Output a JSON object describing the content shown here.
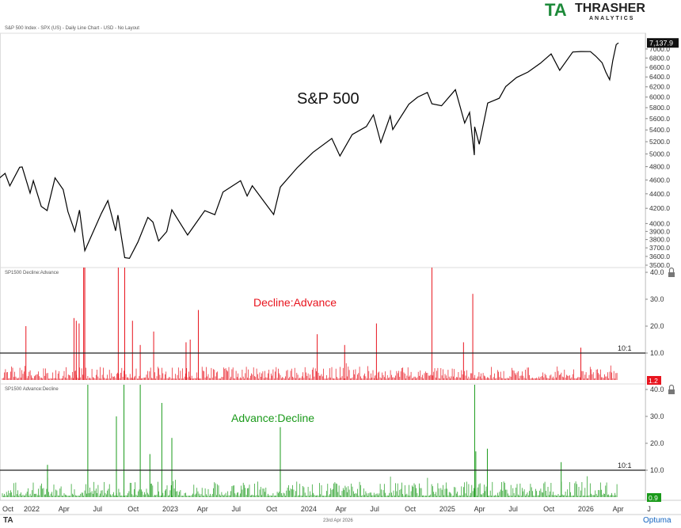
{
  "header": {
    "subtitle": "S&P 500 Index - SPX (US) - Daily Line Chart - USD - No Layout",
    "logo_text": "THRASHER",
    "logo_sub": "ANALYTICS",
    "logo_mark": "TA"
  },
  "footer": {
    "date": "23rd Apr 2026",
    "brand": "Optuma",
    "mark": "TA"
  },
  "colors": {
    "price": "#000000",
    "decline": "#e8141e",
    "advance": "#1a9a1a",
    "threshold": "#222222"
  },
  "chart_data": [
    {
      "type": "line",
      "title": "S&P 500",
      "yscale": "log",
      "ylim": [
        3500,
        7200
      ],
      "yticks": [
        3500,
        3600,
        3700,
        3800,
        3900,
        4000,
        4200,
        4400,
        4600,
        4800,
        5000,
        5200,
        5400,
        5600,
        5800,
        6000,
        6200,
        6400,
        6600,
        6800,
        7000
      ],
      "last_value_label": "7,137.9",
      "xticks": [
        "Oct",
        "2022",
        "Apr",
        "Jul",
        "Oct",
        "2023",
        "Apr",
        "Jul",
        "Oct",
        "2024",
        "Apr",
        "Jul",
        "Oct",
        "2025",
        "Apr",
        "Jul",
        "Oct",
        "2026",
        "Apr",
        "J"
      ],
      "points": [
        [
          "2021-10-01",
          4357
        ],
        [
          "2021-10-15",
          4471
        ],
        [
          "2021-11-01",
          4613
        ],
        [
          "2021-11-19",
          4698
        ],
        [
          "2021-12-01",
          4513
        ],
        [
          "2021-12-27",
          4791
        ],
        [
          "2022-01-03",
          4796
        ],
        [
          "2022-01-24",
          4410
        ],
        [
          "2022-02-02",
          4589
        ],
        [
          "2022-02-23",
          4225
        ],
        [
          "2022-03-08",
          4170
        ],
        [
          "2022-03-29",
          4631
        ],
        [
          "2022-04-20",
          4460
        ],
        [
          "2022-05-02",
          4155
        ],
        [
          "2022-05-20",
          3901
        ],
        [
          "2022-06-02",
          4176
        ],
        [
          "2022-06-16",
          3666
        ],
        [
          "2022-07-01",
          3825
        ],
        [
          "2022-07-29",
          4130
        ],
        [
          "2022-08-16",
          4305
        ],
        [
          "2022-09-06",
          3908
        ],
        [
          "2022-09-12",
          4110
        ],
        [
          "2022-09-30",
          3585
        ],
        [
          "2022-10-12",
          3577
        ],
        [
          "2022-11-04",
          3770
        ],
        [
          "2022-11-30",
          4080
        ],
        [
          "2022-12-13",
          4019
        ],
        [
          "2022-12-28",
          3783
        ],
        [
          "2023-01-19",
          3899
        ],
        [
          "2023-02-02",
          4179
        ],
        [
          "2023-03-13",
          3855
        ],
        [
          "2023-04-28",
          4169
        ],
        [
          "2023-05-24",
          4115
        ],
        [
          "2023-06-15",
          4425
        ],
        [
          "2023-07-31",
          4589
        ],
        [
          "2023-08-18",
          4369
        ],
        [
          "2023-09-01",
          4515
        ],
        [
          "2023-10-27",
          4117
        ],
        [
          "2023-11-14",
          4496
        ],
        [
          "2023-12-28",
          4783
        ],
        [
          "2024-02-09",
          5026
        ],
        [
          "2024-03-28",
          5254
        ],
        [
          "2024-04-19",
          4967
        ],
        [
          "2024-05-21",
          5321
        ],
        [
          "2024-06-28",
          5460
        ],
        [
          "2024-07-16",
          5667
        ],
        [
          "2024-08-05",
          5186
        ],
        [
          "2024-08-30",
          5648
        ],
        [
          "2024-09-06",
          5408
        ],
        [
          "2024-10-18",
          5864
        ],
        [
          "2024-11-11",
          6001
        ],
        [
          "2024-12-06",
          6090
        ],
        [
          "2024-12-18",
          5872
        ],
        [
          "2025-01-13",
          5836
        ],
        [
          "2025-02-19",
          6144
        ],
        [
          "2025-03-13",
          5521
        ],
        [
          "2025-03-26",
          5712
        ],
        [
          "2025-04-08",
          4982
        ],
        [
          "2025-04-09",
          5456
        ],
        [
          "2025-04-21",
          5158
        ],
        [
          "2025-05-13",
          5886
        ],
        [
          "2025-06-13",
          5977
        ],
        [
          "2025-06-30",
          6205
        ],
        [
          "2025-07-28",
          6389
        ],
        [
          "2025-08-28",
          6501
        ],
        [
          "2025-09-30",
          6688
        ],
        [
          "2025-10-28",
          6890
        ],
        [
          "2025-11-20",
          6538
        ],
        [
          "2025-12-24",
          6932
        ],
        [
          "2026-01-15",
          6944
        ],
        [
          "2026-02-10",
          6941
        ],
        [
          "2026-02-24",
          6840
        ],
        [
          "2026-03-10",
          6700
        ],
        [
          "2026-03-20",
          6500
        ],
        [
          "2026-03-30",
          6343
        ],
        [
          "2026-04-08",
          6750
        ],
        [
          "2026-04-17",
          7100
        ],
        [
          "2026-04-23",
          7137.9
        ]
      ]
    },
    {
      "type": "bar",
      "panel_title": "SP1500 Decline:Advance",
      "title": "Decline:Advance",
      "ylim": [
        0,
        40
      ],
      "yticks": [
        10,
        20,
        30,
        40
      ],
      "threshold": 10,
      "threshold_label": "10:1",
      "last_value_label": "1.2",
      "baseline_range": [
        0.5,
        5
      ],
      "spikes": [
        [
          "2022-01-13",
          20
        ],
        [
          "2022-05-18",
          23
        ],
        [
          "2022-05-24",
          22
        ],
        [
          "2022-06-01",
          21
        ],
        [
          "2022-06-13",
          45
        ],
        [
          "2022-06-16",
          45
        ],
        [
          "2022-09-13",
          45
        ],
        [
          "2022-09-30",
          45
        ],
        [
          "2022-10-20",
          22
        ],
        [
          "2022-11-10",
          13
        ],
        [
          "2022-12-15",
          18
        ],
        [
          "2023-03-09",
          14
        ],
        [
          "2023-03-20",
          15
        ],
        [
          "2023-04-11",
          26
        ],
        [
          "2024-02-20",
          17
        ],
        [
          "2024-05-01",
          13
        ],
        [
          "2024-07-24",
          21
        ],
        [
          "2024-12-18",
          45
        ],
        [
          "2025-03-10",
          14
        ],
        [
          "2025-04-04",
          32
        ],
        [
          "2026-01-15",
          12
        ]
      ]
    },
    {
      "type": "bar",
      "panel_title": "SP1500 Advance:Decline",
      "title": "Advance:Decline",
      "ylim": [
        0,
        40
      ],
      "yticks": [
        10,
        20,
        30,
        40
      ],
      "threshold": 10,
      "threshold_label": "10:1",
      "last_value_label": "0.9",
      "baseline_range": [
        0.5,
        6
      ],
      "spikes": [
        [
          "2022-03-09",
          12
        ],
        [
          "2022-06-24",
          45
        ],
        [
          "2022-09-08",
          30
        ],
        [
          "2022-09-28",
          45
        ],
        [
          "2022-11-10",
          45
        ],
        [
          "2022-12-05",
          16
        ],
        [
          "2023-01-06",
          35
        ],
        [
          "2023-02-02",
          22
        ],
        [
          "2023-11-14",
          26
        ],
        [
          "2025-04-09",
          45
        ],
        [
          "2025-04-12",
          17
        ],
        [
          "2025-05-12",
          18
        ],
        [
          "2025-11-24",
          13
        ]
      ]
    }
  ]
}
